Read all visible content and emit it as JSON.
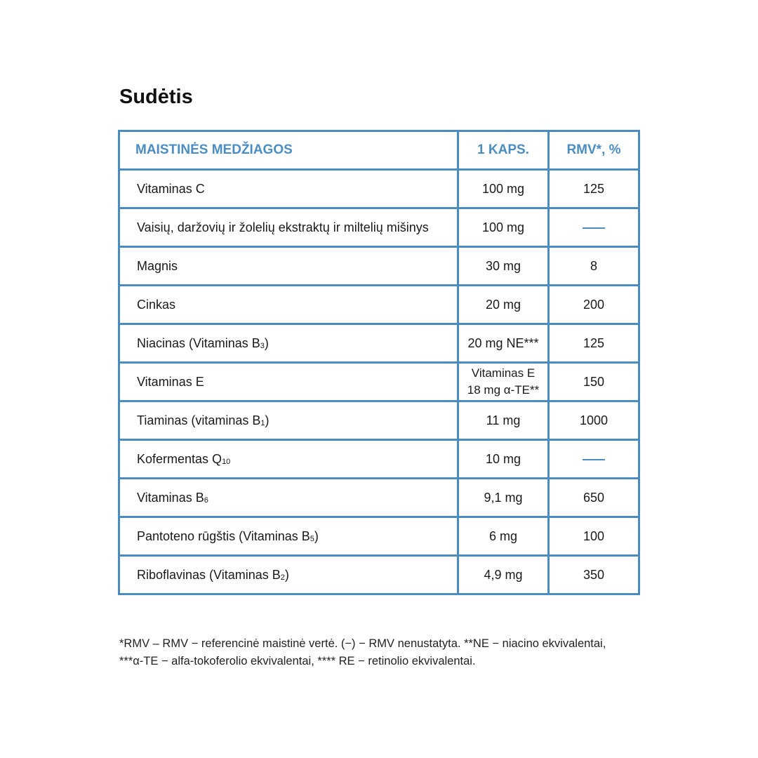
{
  "title": "Sudėtis",
  "accent_color": "#4b8dc2",
  "table": {
    "headers": [
      "MAISTINĖS MEDŽIAGOS",
      "1 KAPS.",
      "RMV*, %"
    ],
    "rows": [
      {
        "name": "Vitaminas C",
        "sub": "",
        "suffix": "",
        "amount": "100 mg",
        "rmv": "125"
      },
      {
        "name": "Vaisių, daržovių ir žolelių ekstraktų ir miltelių mišinys",
        "sub": "",
        "suffix": "",
        "amount": "100 mg",
        "rmv": "—"
      },
      {
        "name": "Magnis",
        "sub": "",
        "suffix": "",
        "amount": "30 mg",
        "rmv": "8"
      },
      {
        "name": "Cinkas",
        "sub": "",
        "suffix": "",
        "amount": "20 mg",
        "rmv": "200"
      },
      {
        "name": "Niacinas (Vitaminas B",
        "sub": "3",
        "suffix": ")",
        "amount": "20 mg NE***",
        "rmv": "125"
      },
      {
        "name": "Vitaminas E",
        "sub": "",
        "suffix": "",
        "amount": "Vitaminas E",
        "amount2": "18 mg α-TE**",
        "rmv": "150"
      },
      {
        "name": "Tiaminas (vitaminas B",
        "sub": "1",
        "suffix": ")",
        "amount": "11 mg",
        "rmv": "1000"
      },
      {
        "name": "Kofermentas Q",
        "sub": "10",
        "suffix": "",
        "amount": "10 mg",
        "rmv": "—"
      },
      {
        "name": "Vitaminas B",
        "sub": "6",
        "suffix": "",
        "amount": "9,1 mg",
        "rmv": "650"
      },
      {
        "name": "Pantoteno rūgštis (Vitaminas B",
        "sub": "5",
        "suffix": ")",
        "amount": "6 mg",
        "rmv": "100"
      },
      {
        "name": "Riboflavinas (Vitaminas B",
        "sub": "2",
        "suffix": ")",
        "amount": "4,9 mg",
        "rmv": "350"
      }
    ]
  },
  "footnote": {
    "line1": "*RMV – RMV − referencinė maistinė vertė. (−) − RMV nenustatyta. **NE − niacino ekvivalentai,",
    "line2": "***α-TE − alfa-tokoferolio ekvivalentai, **** RE − retinolio ekvivalentai."
  }
}
